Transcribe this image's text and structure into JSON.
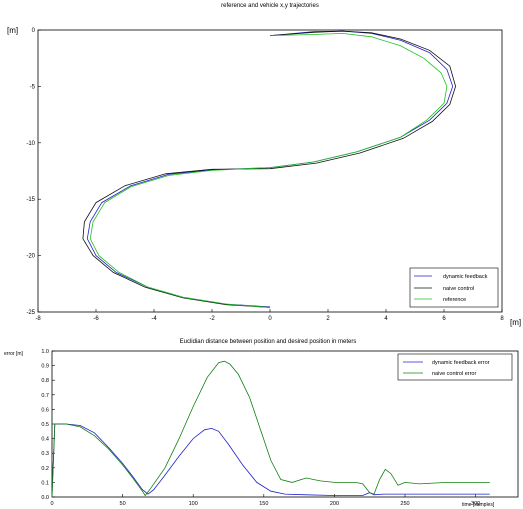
{
  "chart_data": [
    {
      "type": "line",
      "title": "reference and vehicle x,y trajectories",
      "xlabel": "[m]",
      "ylabel": "[m]",
      "xlim": [
        -8,
        8
      ],
      "ylim": [
        -25,
        0
      ],
      "xticks": [
        "-8",
        "-6",
        "-4",
        "-2",
        "0",
        "2",
        "4",
        "6",
        "8"
      ],
      "yticks": [
        "0",
        "-5",
        "-10",
        "-15",
        "-20",
        "-25"
      ],
      "grid": false,
      "legend_position": "bottom-right",
      "series": [
        {
          "name": "dynamic feedback",
          "color": "#2020d0",
          "points": [
            [
              0,
              -0.5
            ],
            [
              1.5,
              -0.15
            ],
            [
              2.5,
              -0.1
            ],
            [
              3.5,
              -0.3
            ],
            [
              4.5,
              -0.9
            ],
            [
              5.5,
              -2.0
            ],
            [
              6.1,
              -3.5
            ],
            [
              6.3,
              -5.0
            ],
            [
              6.1,
              -6.5
            ],
            [
              5.5,
              -8.0
            ],
            [
              4.5,
              -9.5
            ],
            [
              3,
              -10.8
            ],
            [
              1.5,
              -11.7
            ],
            [
              0,
              -12.2
            ],
            [
              -2,
              -12.4
            ],
            [
              -3.5,
              -12.8
            ],
            [
              -4.8,
              -13.8
            ],
            [
              -5.8,
              -15.3
            ],
            [
              -6.2,
              -17.0
            ],
            [
              -6.3,
              -18.5
            ],
            [
              -6.0,
              -20.0
            ],
            [
              -5.3,
              -21.5
            ],
            [
              -4.2,
              -22.8
            ],
            [
              -3,
              -23.7
            ],
            [
              -1.5,
              -24.3
            ],
            [
              0,
              -24.55
            ]
          ]
        },
        {
          "name": "naive control",
          "color": "#101010",
          "points": [
            [
              0,
              -0.5
            ],
            [
              1.5,
              -0.2
            ],
            [
              2.5,
              -0.1
            ],
            [
              3.5,
              -0.25
            ],
            [
              4.5,
              -0.8
            ],
            [
              5.5,
              -1.8
            ],
            [
              6.2,
              -3.2
            ],
            [
              6.4,
              -5.0
            ],
            [
              6.2,
              -6.6
            ],
            [
              5.6,
              -8.1
            ],
            [
              4.6,
              -9.6
            ],
            [
              3.1,
              -10.9
            ],
            [
              1.6,
              -11.8
            ],
            [
              0,
              -12.3
            ],
            [
              -2,
              -12.35
            ],
            [
              -3.6,
              -12.75
            ],
            [
              -5.0,
              -13.8
            ],
            [
              -6.0,
              -15.3
            ],
            [
              -6.4,
              -17.0
            ],
            [
              -6.45,
              -18.5
            ],
            [
              -6.1,
              -20.0
            ],
            [
              -5.4,
              -21.5
            ],
            [
              -4.3,
              -22.8
            ],
            [
              -3,
              -23.75
            ],
            [
              -1.5,
              -24.35
            ],
            [
              0,
              -24.6
            ]
          ]
        },
        {
          "name": "reference",
          "color": "#20c020",
          "points": [
            [
              0,
              -0.5
            ],
            [
              1.5,
              -0.4
            ],
            [
              2.5,
              -0.3
            ],
            [
              3.5,
              -0.6
            ],
            [
              4.5,
              -1.4
            ],
            [
              5.3,
              -2.5
            ],
            [
              5.9,
              -3.8
            ],
            [
              6.1,
              -5.0
            ],
            [
              6.0,
              -6.5
            ],
            [
              5.4,
              -8.0
            ],
            [
              4.5,
              -9.5
            ],
            [
              3,
              -10.8
            ],
            [
              1.5,
              -11.7
            ],
            [
              0,
              -12.2
            ],
            [
              -2,
              -12.45
            ],
            [
              -3.5,
              -12.9
            ],
            [
              -4.8,
              -13.9
            ],
            [
              -5.7,
              -15.3
            ],
            [
              -6.1,
              -17.0
            ],
            [
              -6.2,
              -18.5
            ],
            [
              -5.9,
              -20.0
            ],
            [
              -5.2,
              -21.5
            ],
            [
              -4.2,
              -22.8
            ],
            [
              -3,
              -23.7
            ],
            [
              -1.5,
              -24.3
            ],
            [
              0,
              -24.6
            ]
          ]
        }
      ]
    },
    {
      "type": "line",
      "title": "Euclidian distance between position and desired position in meters",
      "xlabel": "time [samples]",
      "ylabel": "error [m]",
      "xlim": [
        0,
        330
      ],
      "ylim": [
        0,
        1.0
      ],
      "xticks": [
        "0",
        "50",
        "100",
        "150",
        "200",
        "250",
        "300"
      ],
      "yticks": [
        "0.0",
        "0.1",
        "0.2",
        "0.3",
        "0.4",
        "0.5",
        "0.6",
        "0.7",
        "0.8",
        "0.9",
        "1.0"
      ],
      "grid": false,
      "legend_position": "top-right",
      "series": [
        {
          "name": "dynamic feedback error",
          "color": "#2020d0",
          "points": [
            [
              0,
              0
            ],
            [
              2,
              0.5
            ],
            [
              10,
              0.5
            ],
            [
              20,
              0.49
            ],
            [
              30,
              0.44
            ],
            [
              40,
              0.34
            ],
            [
              50,
              0.23
            ],
            [
              58,
              0.13
            ],
            [
              64,
              0.05
            ],
            [
              68,
              0.02
            ],
            [
              72,
              0.05
            ],
            [
              80,
              0.15
            ],
            [
              90,
              0.28
            ],
            [
              100,
              0.4
            ],
            [
              108,
              0.46
            ],
            [
              113,
              0.47
            ],
            [
              118,
              0.45
            ],
            [
              125,
              0.36
            ],
            [
              135,
              0.22
            ],
            [
              145,
              0.1
            ],
            [
              155,
              0.04
            ],
            [
              165,
              0.02
            ],
            [
              180,
              0.015
            ],
            [
              200,
              0.01
            ],
            [
              220,
              0.01
            ],
            [
              225,
              0.03
            ],
            [
              228,
              0.015
            ],
            [
              235,
              0.02
            ],
            [
              260,
              0.02
            ],
            [
              300,
              0.02
            ],
            [
              310,
              0.02
            ]
          ]
        },
        {
          "name": "naive control error",
          "color": "#108010",
          "points": [
            [
              0,
              0
            ],
            [
              2,
              0.5
            ],
            [
              10,
              0.5
            ],
            [
              20,
              0.48
            ],
            [
              30,
              0.42
            ],
            [
              40,
              0.33
            ],
            [
              50,
              0.22
            ],
            [
              58,
              0.12
            ],
            [
              64,
              0.04
            ],
            [
              66,
              0.01
            ],
            [
              70,
              0.06
            ],
            [
              80,
              0.2
            ],
            [
              90,
              0.4
            ],
            [
              100,
              0.62
            ],
            [
              110,
              0.82
            ],
            [
              118,
              0.92
            ],
            [
              122,
              0.93
            ],
            [
              126,
              0.91
            ],
            [
              132,
              0.84
            ],
            [
              140,
              0.68
            ],
            [
              148,
              0.45
            ],
            [
              155,
              0.25
            ],
            [
              162,
              0.12
            ],
            [
              170,
              0.1
            ],
            [
              180,
              0.13
            ],
            [
              190,
              0.11
            ],
            [
              200,
              0.1
            ],
            [
              215,
              0.1
            ],
            [
              220,
              0.09
            ],
            [
              225,
              0.03
            ],
            [
              228,
              0.02
            ],
            [
              232,
              0.12
            ],
            [
              236,
              0.19
            ],
            [
              240,
              0.16
            ],
            [
              245,
              0.08
            ],
            [
              250,
              0.1
            ],
            [
              260,
              0.09
            ],
            [
              280,
              0.1
            ],
            [
              310,
              0.1
            ]
          ]
        }
      ]
    }
  ]
}
